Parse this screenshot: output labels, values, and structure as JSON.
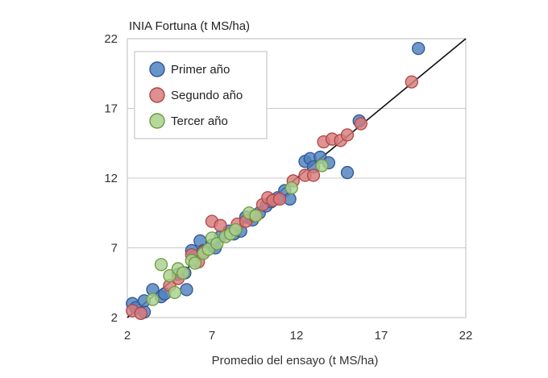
{
  "chart_data": {
    "type": "scatter",
    "title": "INIA Fortuna (t MS/ha)",
    "xlabel": "Promedio del ensayo (t MS/ha)",
    "ylabel": "",
    "xlim": [
      2,
      22
    ],
    "ylim": [
      2,
      22
    ],
    "xticks": [
      "2",
      "7",
      "12",
      "17",
      "22"
    ],
    "yticks": [
      "2",
      "7",
      "12",
      "17",
      "22"
    ],
    "grid": true,
    "legend_position": "top-left",
    "reference_line": {
      "from": [
        2,
        2
      ],
      "to": [
        22,
        22
      ],
      "color": "#111111"
    },
    "series": [
      {
        "name": "Primer año",
        "color": "#4f81bd",
        "edge": "#2f5597",
        "points": [
          [
            2.3,
            3.0
          ],
          [
            2.5,
            2.7
          ],
          [
            3.0,
            2.4
          ],
          [
            3.0,
            3.2
          ],
          [
            3.5,
            4.0
          ],
          [
            4.0,
            3.5
          ],
          [
            4.2,
            3.7
          ],
          [
            5.0,
            5.1
          ],
          [
            5.4,
            5.2
          ],
          [
            5.5,
            4.0
          ],
          [
            5.8,
            6.8
          ],
          [
            6.0,
            6.4
          ],
          [
            6.3,
            7.5
          ],
          [
            6.5,
            6.8
          ],
          [
            7.0,
            7.2
          ],
          [
            7.2,
            7.0
          ],
          [
            7.5,
            7.8
          ],
          [
            8.0,
            8.2
          ],
          [
            8.3,
            8.0
          ],
          [
            8.7,
            8.2
          ],
          [
            9.0,
            9.2
          ],
          [
            9.4,
            9.0
          ],
          [
            9.8,
            9.5
          ],
          [
            10.2,
            10.0
          ],
          [
            10.5,
            10.3
          ],
          [
            10.9,
            10.6
          ],
          [
            11.3,
            11.1
          ],
          [
            11.6,
            10.5
          ],
          [
            12.5,
            13.2
          ],
          [
            12.8,
            13.4
          ],
          [
            13.0,
            12.8
          ],
          [
            13.4,
            13.5
          ],
          [
            13.9,
            13.1
          ],
          [
            15.0,
            12.4
          ],
          [
            15.7,
            16.1
          ],
          [
            19.2,
            21.3
          ]
        ]
      },
      {
        "name": "Segundo año",
        "color": "#d87b7b",
        "edge": "#b04545",
        "points": [
          [
            2.3,
            2.5
          ],
          [
            2.8,
            2.3
          ],
          [
            4.5,
            4.3
          ],
          [
            5.0,
            4.8
          ],
          [
            5.8,
            6.5
          ],
          [
            6.2,
            6.0
          ],
          [
            6.5,
            6.7
          ],
          [
            7.0,
            8.9
          ],
          [
            7.5,
            8.6
          ],
          [
            8.5,
            8.7
          ],
          [
            9.0,
            8.9
          ],
          [
            9.5,
            9.3
          ],
          [
            10.0,
            10.1
          ],
          [
            10.3,
            10.6
          ],
          [
            10.6,
            10.4
          ],
          [
            11.0,
            10.5
          ],
          [
            11.8,
            11.8
          ],
          [
            12.5,
            12.2
          ],
          [
            13.0,
            12.2
          ],
          [
            13.6,
            14.6
          ],
          [
            14.1,
            14.8
          ],
          [
            14.6,
            14.7
          ],
          [
            15.0,
            15.1
          ],
          [
            15.8,
            15.9
          ],
          [
            18.8,
            18.9
          ]
        ]
      },
      {
        "name": "Tercer año",
        "color": "#a9d18e",
        "edge": "#6b9a3e",
        "points": [
          [
            3.5,
            3.3
          ],
          [
            4.0,
            5.8
          ],
          [
            4.5,
            5.0
          ],
          [
            4.8,
            3.8
          ],
          [
            5.0,
            5.5
          ],
          [
            5.3,
            5.2
          ],
          [
            5.8,
            6.1
          ],
          [
            6.0,
            5.9
          ],
          [
            6.5,
            6.6
          ],
          [
            6.8,
            6.9
          ],
          [
            7.0,
            7.7
          ],
          [
            7.3,
            7.3
          ],
          [
            7.8,
            7.8
          ],
          [
            8.1,
            8.0
          ],
          [
            8.4,
            8.3
          ],
          [
            9.2,
            9.5
          ],
          [
            9.6,
            9.3
          ],
          [
            11.7,
            11.3
          ],
          [
            13.5,
            12.9
          ]
        ]
      }
    ]
  }
}
